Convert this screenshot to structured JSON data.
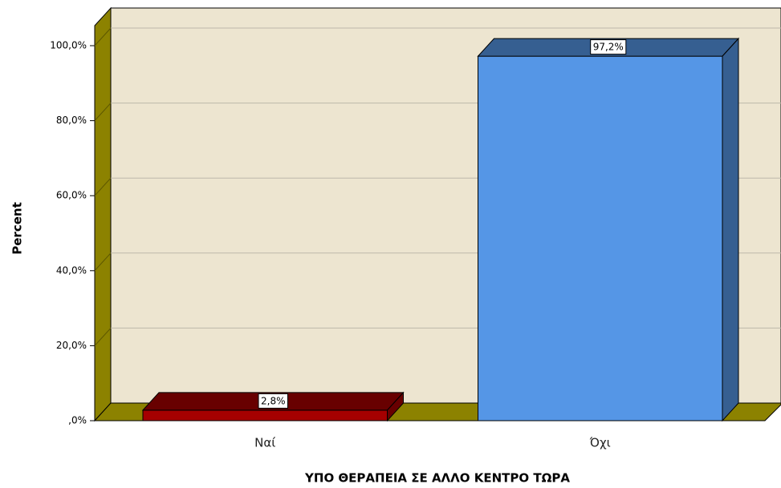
{
  "chart_data": {
    "type": "bar3d",
    "categories": [
      "Ναί",
      "Όχι"
    ],
    "values": [
      2.8,
      97.2
    ],
    "value_labels": [
      "2,8%",
      "97,2%"
    ],
    "colors": [
      "#a50000",
      "#5596e6"
    ],
    "xlabel": "ΥΠΟ ΘΕΡΑΠΕΙΑ ΣΕ ΑΛΛΟ ΚΕΝΤΡΟ ΤΩΡΑ",
    "ylabel": "Percent",
    "ylim": [
      0,
      100
    ],
    "yticks": [
      {
        "value": 0,
        "label": ",0%"
      },
      {
        "value": 20,
        "label": "20,0%"
      },
      {
        "value": 40,
        "label": "40,0%"
      },
      {
        "value": 60,
        "label": "60,0%"
      },
      {
        "value": 80,
        "label": "80,0%"
      },
      {
        "value": 100,
        "label": "100,0%"
      }
    ],
    "grid": true
  }
}
